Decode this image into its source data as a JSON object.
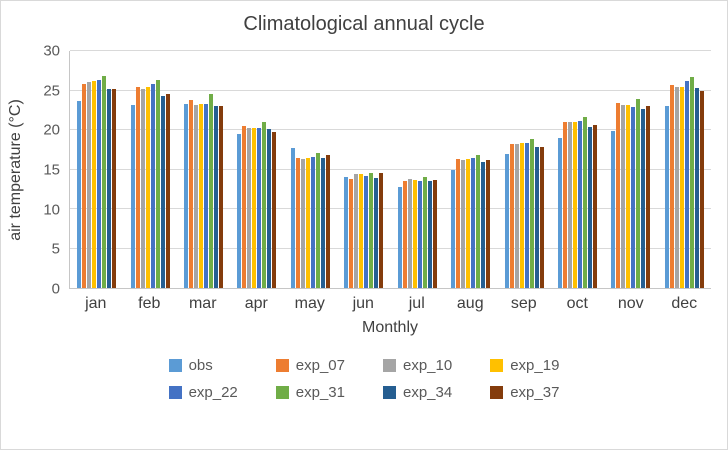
{
  "chart_data": {
    "type": "bar",
    "title": "Climatological annual cycle",
    "xlabel": "Monthly",
    "ylabel": "air temperature (°C)",
    "ylim": [
      0,
      30
    ],
    "yticks": [
      0,
      5,
      10,
      15,
      20,
      25,
      30
    ],
    "grid": true,
    "legend_position": "bottom",
    "categories": [
      "jan",
      "feb",
      "mar",
      "apr",
      "may",
      "jun",
      "jul",
      "aug",
      "sep",
      "oct",
      "nov",
      "dec"
    ],
    "series": [
      {
        "name": "obs",
        "color": "#5B9BD5",
        "values": [
          23.7,
          23.2,
          23.3,
          19.5,
          17.7,
          14.0,
          12.8,
          14.9,
          17.0,
          19.0,
          19.9,
          23.0
        ]
      },
      {
        "name": "exp_07",
        "color": "#ED7D31",
        "values": [
          25.8,
          25.5,
          23.8,
          20.5,
          16.5,
          13.8,
          13.5,
          16.3,
          18.2,
          21.0,
          23.4,
          25.7
        ]
      },
      {
        "name": "exp_10",
        "color": "#A5A5A5",
        "values": [
          26.1,
          25.2,
          23.2,
          20.3,
          16.3,
          14.4,
          13.8,
          16.2,
          18.2,
          21.0,
          23.2,
          25.5
        ]
      },
      {
        "name": "exp_19",
        "color": "#FFC000",
        "values": [
          26.2,
          25.5,
          23.3,
          20.2,
          16.5,
          14.4,
          13.7,
          16.3,
          18.3,
          21.0,
          23.2,
          25.5
        ]
      },
      {
        "name": "exp_22",
        "color": "#4472C4",
        "values": [
          26.3,
          25.8,
          23.3,
          20.2,
          16.6,
          14.2,
          13.5,
          16.5,
          18.3,
          21.2,
          22.9,
          26.2
        ]
      },
      {
        "name": "exp_31",
        "color": "#70AD47",
        "values": [
          26.8,
          26.3,
          24.5,
          21.0,
          17.1,
          14.5,
          14.0,
          16.8,
          18.8,
          21.6,
          23.9,
          26.7
        ]
      },
      {
        "name": "exp_34",
        "color": "#255E91",
        "values": [
          25.2,
          24.3,
          23.1,
          20.1,
          16.4,
          13.9,
          13.6,
          16.0,
          17.8,
          20.4,
          22.6,
          25.3
        ]
      },
      {
        "name": "exp_37",
        "color": "#843C0C",
        "values": [
          25.2,
          24.5,
          23.1,
          19.8,
          16.8,
          14.5,
          13.7,
          16.2,
          17.9,
          20.6,
          23.0,
          24.9
        ]
      }
    ]
  }
}
